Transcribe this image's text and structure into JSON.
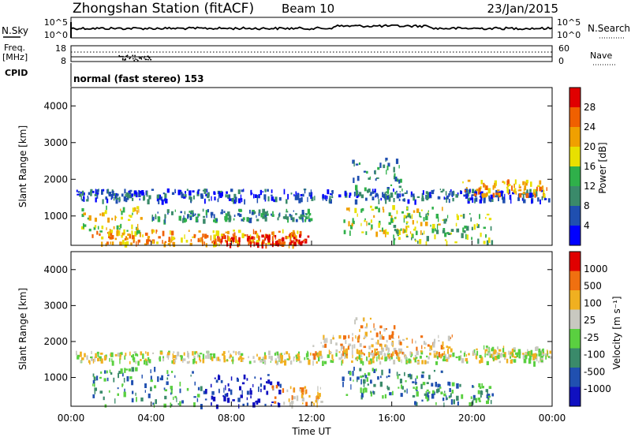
{
  "header": {
    "title": "Zhongshan Station (fitACF)",
    "beam": "Beam 10",
    "date": "23/Jan/2015"
  },
  "panels": {
    "nsky": {
      "left_label": "N.Sky",
      "left_ticks": [
        "10^5",
        "10^0"
      ],
      "right_label": "N.Search",
      "right_ticks": [
        "10^5",
        "10^0"
      ]
    },
    "freq": {
      "left_label_top": "Freq.",
      "left_label_bottom": "[MHz]",
      "left_ticks": [
        "18",
        "8"
      ],
      "right_label": "Nave",
      "right_ticks": [
        "60",
        "0"
      ]
    },
    "cpid": {
      "label": "CPID",
      "mode": "normal (fast stereo) 153"
    }
  },
  "chart_data": [
    {
      "type": "heatmap",
      "name": "power-panel",
      "ylabel": "Slant Range [km]",
      "ylim": [
        200,
        4500
      ],
      "yticks": [
        "1000",
        "2000",
        "3000",
        "4000"
      ],
      "xlim_hours": [
        0,
        24
      ],
      "colorbar": {
        "label": "Power [dB]",
        "ticks": [
          "4",
          "8",
          "12",
          "16",
          "20",
          "24",
          "28"
        ],
        "colors": [
          "#0000ff",
          "#1f4fb0",
          "#3a8a6a",
          "#2fb04a",
          "#e8e000",
          "#f0a000",
          "#f06000",
          "#e00000"
        ]
      },
      "bands": [
        {
          "t0": 0.2,
          "t1": 23.9,
          "r0": 1450,
          "r1": 1750,
          "level": 1
        },
        {
          "t0": 1.0,
          "t1": 11.5,
          "r0": 250,
          "r1": 650,
          "level": 5
        },
        {
          "t0": 7.0,
          "t1": 11.8,
          "r0": 250,
          "r1": 500,
          "level": 7
        },
        {
          "t0": 0.5,
          "t1": 3.5,
          "r0": 600,
          "r1": 1300,
          "level": 4
        },
        {
          "t0": 13.5,
          "t1": 18.5,
          "r0": 500,
          "r1": 1300,
          "level": 4
        },
        {
          "t0": 14.0,
          "t1": 16.5,
          "r0": 1600,
          "r1": 2700,
          "level": 2
        },
        {
          "t0": 19.5,
          "t1": 23.8,
          "r0": 1600,
          "r1": 2000,
          "level": 5
        },
        {
          "t0": 4.0,
          "t1": 12.0,
          "r0": 900,
          "r1": 1200,
          "level": 2
        },
        {
          "t0": 16.0,
          "t1": 21.0,
          "r0": 300,
          "r1": 1100,
          "level": 3
        }
      ]
    },
    {
      "type": "heatmap",
      "name": "velocity-panel",
      "ylabel": "Slant Range [km]",
      "ylim": [
        200,
        4500
      ],
      "yticks": [
        "1000",
        "2000",
        "3000",
        "4000"
      ],
      "xlabel": "Time UT",
      "xticks": [
        "00:00",
        "04:00",
        "08:00",
        "12:00",
        "16:00",
        "20:00",
        "00:00"
      ],
      "xlim_hours": [
        0,
        24
      ],
      "colorbar": {
        "label": "Velocity [m s⁻¹]",
        "ticks": [
          "1000",
          "500",
          "100",
          "25",
          "-25",
          "-100",
          "-500",
          "-1000"
        ],
        "colors": [
          "#1010c0",
          "#2050b0",
          "#3a8a6a",
          "#5ad040",
          "#c8c8c0",
          "#f0b020",
          "#f07010",
          "#e00000"
        ]
      },
      "bands": [
        {
          "t0": 0.2,
          "t1": 23.9,
          "r0": 1450,
          "r1": 1750,
          "level": 4
        },
        {
          "t0": 1.0,
          "t1": 6.5,
          "r0": 250,
          "r1": 1300,
          "level": 2
        },
        {
          "t0": 6.5,
          "t1": 10.5,
          "r0": 250,
          "r1": 1100,
          "level": 0
        },
        {
          "t0": 10.0,
          "t1": 12.5,
          "r0": 250,
          "r1": 800,
          "level": 5
        },
        {
          "t0": 13.5,
          "t1": 18.5,
          "r0": 500,
          "r1": 1300,
          "level": 2
        },
        {
          "t0": 14.0,
          "t1": 16.5,
          "r0": 1700,
          "r1": 2700,
          "level": 5
        },
        {
          "t0": 17.0,
          "t1": 21.0,
          "r0": 300,
          "r1": 900,
          "level": 2
        },
        {
          "t0": 12.0,
          "t1": 19.0,
          "r0": 1600,
          "r1": 2200,
          "level": 5
        },
        {
          "t0": 20.0,
          "t1": 23.9,
          "r0": 1600,
          "r1": 1900,
          "level": 4
        }
      ]
    }
  ]
}
